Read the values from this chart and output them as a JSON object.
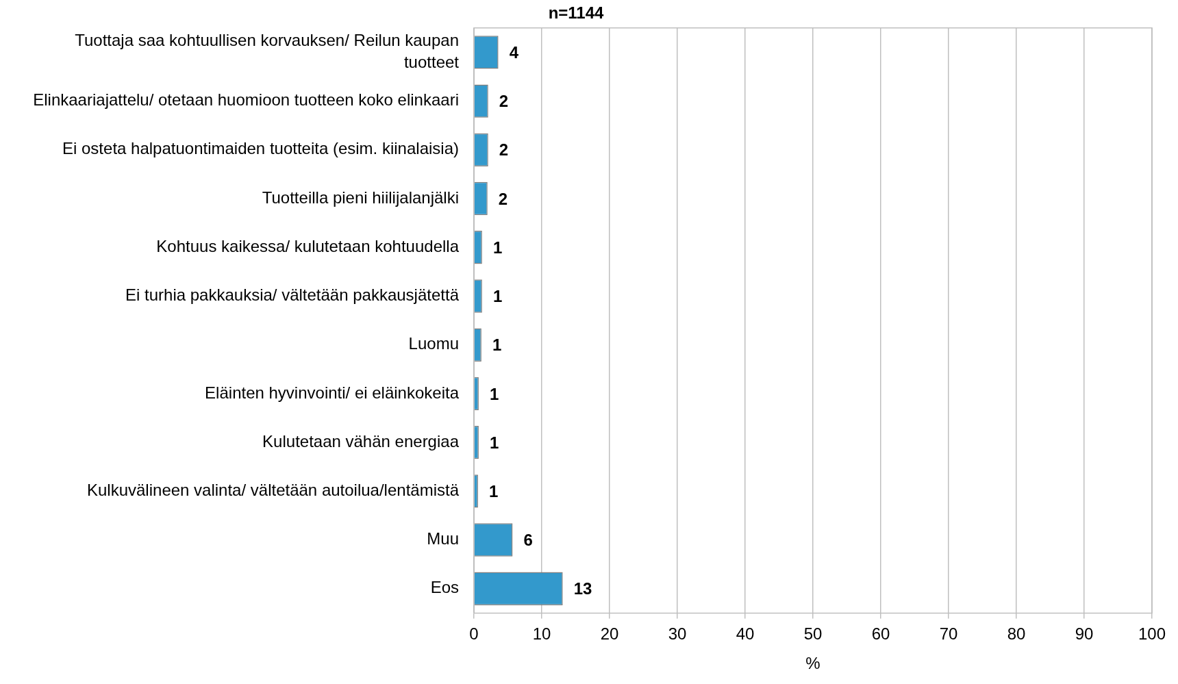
{
  "chart_data": {
    "type": "bar",
    "orientation": "horizontal",
    "title": "n=1144",
    "xlabel": "%",
    "categories": [
      "Tuottaja saa kohtuullisen korvauksen/ Reilun kaupan tuotteet",
      "Elinkaariajattelu/ otetaan huomioon tuotteen koko elinkaari",
      "Ei osteta halpatuontimaiden tuotteita (esim. kiinalaisia)",
      "Tuotteilla pieni hiilijalanjälki",
      "Kohtuus kaikessa/ kulutetaan kohtuudella",
      "Ei turhia pakkauksia/ vältetään pakkausjätettä",
      "Luomu",
      "Eläinten hyvinvointi/ ei eläinkokeita",
      "Kulutetaan vähän energiaa",
      "Kulkuvälineen valinta/ vältetään autoilua/lentämistä",
      "Muu",
      "Eos"
    ],
    "values": [
      3.6,
      2.1,
      2.1,
      2.0,
      1.2,
      1.2,
      1.1,
      0.7,
      0.7,
      0.6,
      5.7,
      13.1
    ],
    "value_labels": [
      "4",
      "2",
      "2",
      "2",
      "1",
      "1",
      "1",
      "1",
      "1",
      "1",
      "6",
      "13"
    ],
    "color": "#3399cc",
    "xlim": [
      0,
      100
    ],
    "xticks": [
      0,
      10,
      20,
      30,
      40,
      50,
      60,
      70,
      80,
      90,
      100
    ],
    "grid": "x",
    "legend": false
  }
}
